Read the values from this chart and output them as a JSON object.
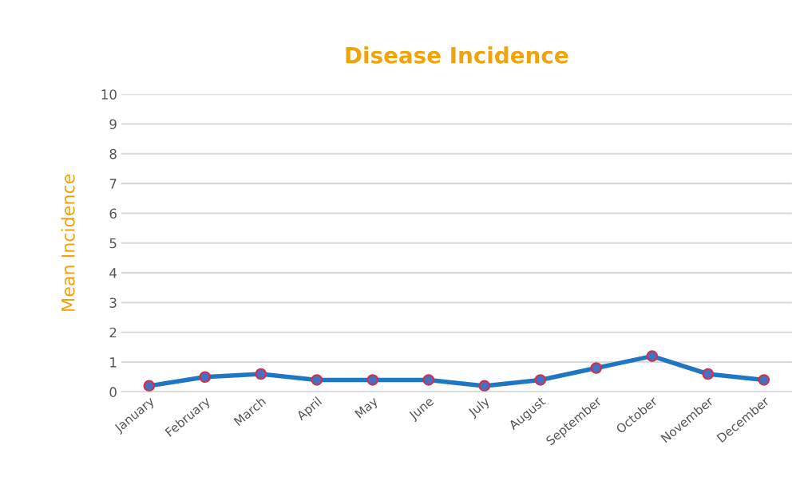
{
  "chart_data": {
    "type": "line",
    "title": "Disease Incidence",
    "ylabel": "Mean Incidence",
    "categories": [
      "January",
      "February",
      "March",
      "April",
      "May",
      "June",
      "July",
      "August",
      "September",
      "October",
      "November",
      "December"
    ],
    "series": [
      {
        "color": "#1f77c4",
        "values": [
          0.2,
          0.5,
          0.6,
          0.4,
          0.4,
          0.4,
          0.2,
          0.4,
          0.8,
          1.2,
          0.6,
          0.4
        ]
      }
    ],
    "ylim": [
      0,
      10
    ],
    "yticks": [
      0,
      1,
      2,
      3,
      4,
      5,
      6,
      7,
      8,
      9,
      10
    ],
    "grid": "y",
    "marker": "circle",
    "line_style": "solid"
  }
}
